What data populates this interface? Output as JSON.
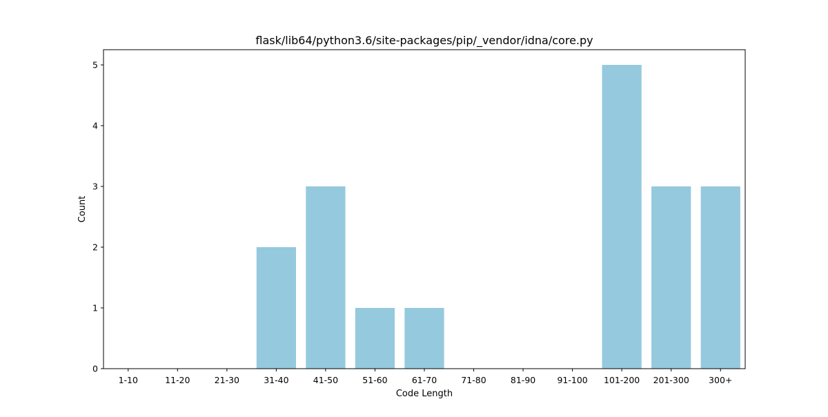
{
  "chart_data": {
    "type": "bar",
    "title": "flask/lib64/python3.6/site-packages/pip/_vendor/idna/core.py",
    "xlabel": "Code Length",
    "ylabel": "Count",
    "categories": [
      "1-10",
      "11-20",
      "21-30",
      "31-40",
      "41-50",
      "51-60",
      "61-70",
      "71-80",
      "81-90",
      "91-100",
      "101-200",
      "201-300",
      "300+"
    ],
    "values": [
      0,
      0,
      0,
      2,
      3,
      1,
      1,
      0,
      0,
      0,
      5,
      3,
      3
    ],
    "ylim": [
      0,
      5.25
    ],
    "yticks": [
      "0",
      "1",
      "2",
      "3",
      "4",
      "5"
    ],
    "bar_color": "#95c9de",
    "grid": false,
    "legend": "none"
  }
}
